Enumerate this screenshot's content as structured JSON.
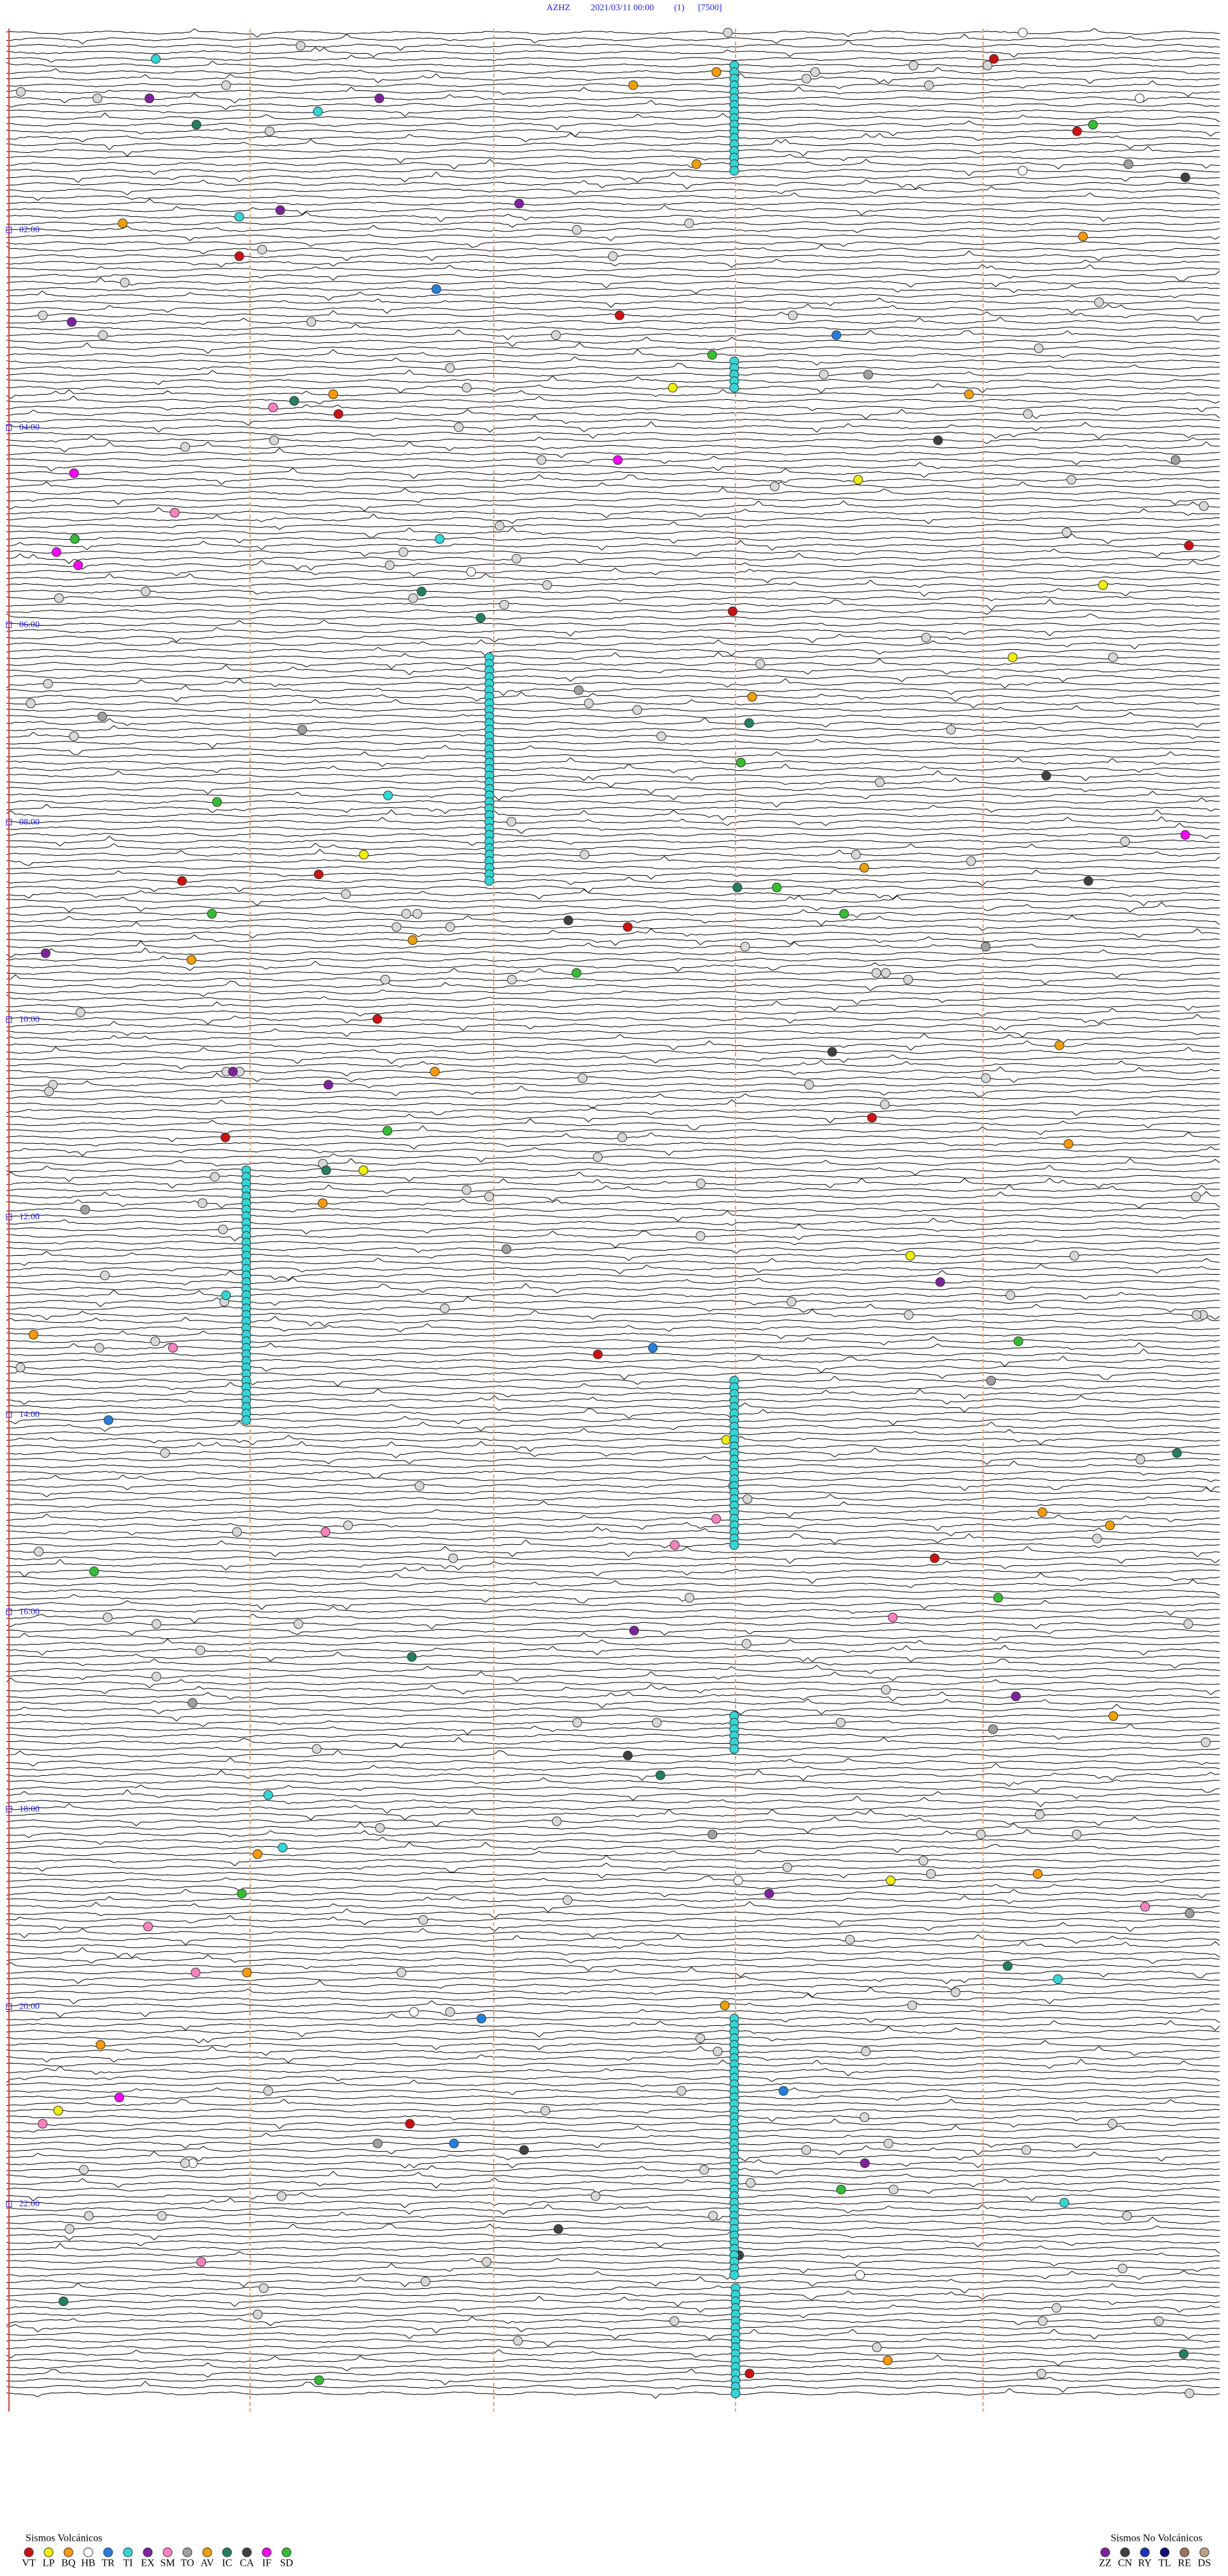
{
  "header": {
    "station": "AZHZ",
    "datetime": "2021/03/11 00:00",
    "channel": "(1)",
    "scale": "[7500]"
  },
  "hour_labels": [
    "02:00",
    "04:00",
    "06:00",
    "08:00",
    "10:00",
    "12:00",
    "14:00",
    "16:00",
    "18:00",
    "20:00",
    "22:00"
  ],
  "legend_volcanic": {
    "title": "Sismos Volcánicos",
    "codes": [
      "VT",
      "LP",
      "BQ",
      "HB",
      "TR",
      "TI",
      "EX",
      "SM",
      "TO",
      "AV",
      "IC",
      "CA",
      "IF",
      "SD"
    ]
  },
  "legend_non_volcanic": {
    "title": "Sismos No Volcánicos",
    "codes": [
      "ZZ",
      "CN",
      "RY",
      "TL",
      "RE",
      "DS"
    ]
  }
}
